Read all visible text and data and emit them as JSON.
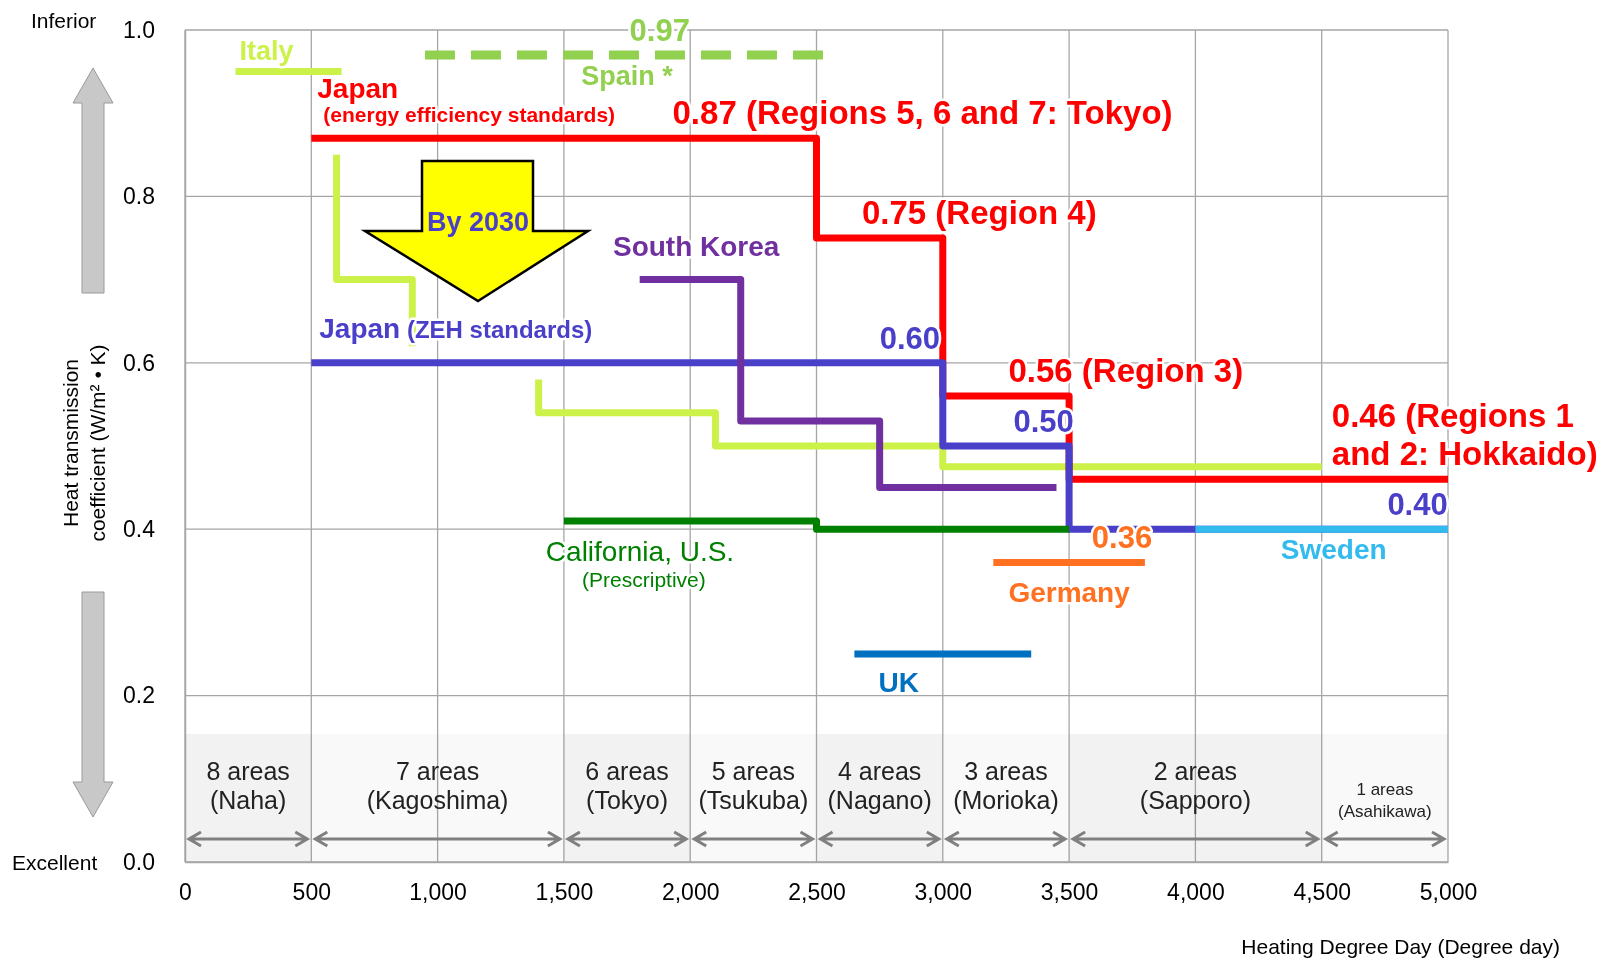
{
  "chart_data": {
    "type": "line",
    "xlabel": "Heating Degree Day (Degree day)",
    "ylabel": "Heat transmission coefficient (W/m² • K)",
    "xlim": [
      0,
      5000
    ],
    "xticks": [
      0,
      500,
      {
        "value": 1000,
        "label": "1,000"
      },
      {
        "value": 1500,
        "label": "1,500"
      },
      {
        "value": 2000,
        "label": "2,000"
      },
      {
        "value": 2500,
        "label": "2,500"
      },
      {
        "value": 3000,
        "label": "3,000"
      },
      {
        "value": 3500,
        "label": "3,500"
      },
      {
        "value": 4000,
        "label": "4,000"
      },
      {
        "value": 4500,
        "label": "4,500"
      },
      {
        "value": 5000,
        "label": "5,000"
      }
    ],
    "ylim": [
      0,
      1
    ],
    "yticks": [
      {
        "value": 0,
        "label": "0.0"
      },
      0.2,
      0.4,
      0.6,
      0.8,
      {
        "value": 1,
        "label": "1.0"
      }
    ],
    "grid": true,
    "legend": false,
    "series": [
      {
        "name": "Italy",
        "color": "#ccf24a",
        "x": [
          200,
          620,
          610,
          600,
          600,
          900,
          900,
          1150,
          1400,
          1400,
          2100,
          2100,
          3000,
          3000,
          4500
        ],
        "values": [
          0.95,
          0.95,
          null,
          0.85,
          0.7,
          0.7,
          0.62,
          null,
          0.58,
          0.54,
          0.54,
          0.5,
          0.5,
          0.475,
          0.475
        ]
      },
      {
        "name": "Spain *",
        "color": "#92d050",
        "line_style": "dashed",
        "x": [
          950,
          2550
        ],
        "values": [
          0.97,
          0.97
        ]
      },
      {
        "name": "Japan (energy efficiency standards)",
        "color": "#ff0000",
        "x": [
          500,
          2500,
          2500,
          3000,
          3000,
          3500,
          3500,
          5000
        ],
        "values": [
          0.87,
          0.87,
          0.75,
          0.75,
          0.56,
          0.56,
          0.46,
          0.46
        ]
      },
      {
        "name": "Japan (ZEH standards)",
        "color": "#4a3fc9",
        "x": [
          500,
          3000,
          3000,
          3500,
          3500,
          5000
        ],
        "values": [
          0.6,
          0.6,
          0.5,
          0.5,
          0.4,
          0.4
        ]
      },
      {
        "name": "South Korea",
        "color": "#7030a0",
        "x": [
          1800,
          2200,
          2200,
          2750,
          2750,
          3450
        ],
        "values": [
          0.7,
          0.7,
          0.53,
          0.53,
          0.45,
          0.45
        ]
      },
      {
        "name": "California, U.S. (Prescriptive)",
        "color": "#008000",
        "x": [
          1500,
          2500,
          2500,
          3500
        ],
        "values": [
          0.41,
          0.41,
          0.4,
          0.4
        ]
      },
      {
        "name": "Germany",
        "color": "#ff7020",
        "x": [
          3200,
          3800
        ],
        "values": [
          0.36,
          0.36
        ]
      },
      {
        "name": "UK",
        "color": "#0070c0",
        "x": [
          2650,
          3350
        ],
        "values": [
          0.25,
          0.25
        ]
      },
      {
        "name": "Sweden",
        "color": "#33bbee",
        "x": [
          4000,
          5000
        ],
        "values": [
          0.4,
          0.4
        ]
      }
    ],
    "bands": [
      {
        "axis": "x",
        "from": 0,
        "to": 500,
        "label": "8 areas (Naha)",
        "color": "#808080"
      },
      {
        "axis": "x",
        "from": 500,
        "to": 1500,
        "label": "7 areas (Kagoshima)",
        "color": "#808080"
      },
      {
        "axis": "x",
        "from": 1500,
        "to": 2000,
        "label": "6 areas (Tokyo)",
        "color": "#808080"
      },
      {
        "axis": "x",
        "from": 2000,
        "to": 2500,
        "label": "5 areas (Tsukuba)",
        "color": "#808080"
      },
      {
        "axis": "x",
        "from": 2500,
        "to": 3000,
        "label": "4 areas (Nagano)",
        "color": "#808080"
      },
      {
        "axis": "x",
        "from": 3000,
        "to": 3500,
        "label": "3 areas (Morioka)",
        "color": "#808080"
      },
      {
        "axis": "x",
        "from": 3500,
        "to": 4500,
        "label": "2 areas (Sapporo)",
        "color": "#808080"
      },
      {
        "axis": "x",
        "from": 4500,
        "to": 5000,
        "label": "1 areas (Asahikawa)",
        "color": "#808080"
      }
    ],
    "annotations": [
      "Inferior",
      "Excellent",
      "By 2030",
      {
        "text": "0.97",
        "x": 1760,
        "y": 0.97
      },
      {
        "text": "0.87 (Regions 5, 6 and 7: Tokyo)",
        "x": 1930,
        "y": 0.87
      },
      {
        "text": "0.75 (Region 4)",
        "x": 2680,
        "y": 0.75
      },
      {
        "text": "0.60",
        "x": 2750,
        "y": 0.6
      },
      {
        "text": "0.56 (Region 3)",
        "x": 3260,
        "y": 0.56
      },
      {
        "text": "0.50",
        "x": 3280,
        "y": 0.5
      },
      {
        "text": "0.46 (Regions 1 and 2: Hokkaido)",
        "x": 4540,
        "y": 0.46
      },
      {
        "text": "0.40",
        "x": 4760,
        "y": 0.4
      },
      {
        "text": "0.36",
        "x": 3590,
        "y": 0.36
      }
    ]
  }
}
